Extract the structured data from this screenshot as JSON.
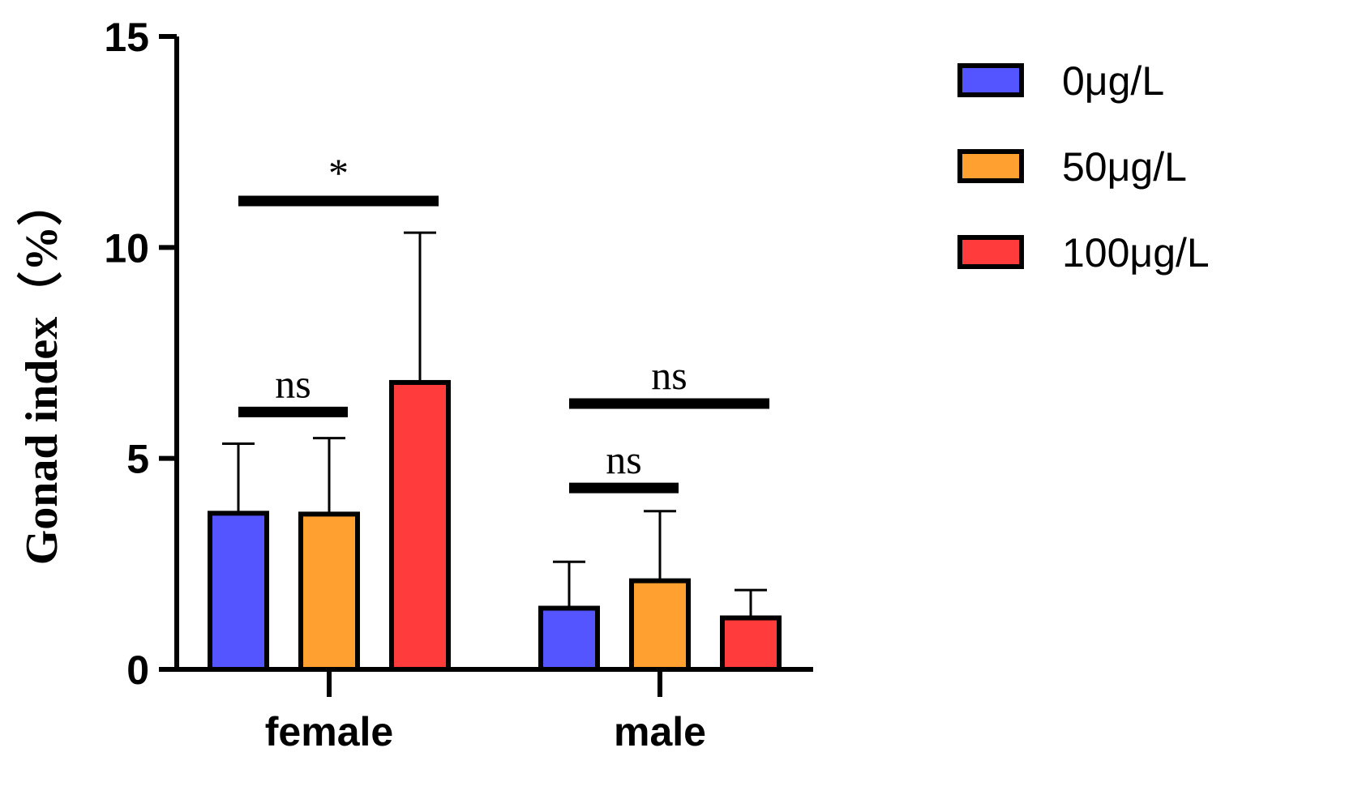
{
  "chart_data": {
    "type": "bar",
    "title": "",
    "xlabel": "",
    "ylabel": "Gonad index（%）",
    "ylim": [
      0,
      15
    ],
    "yticks": [
      "0",
      "5",
      "10",
      "15"
    ],
    "grid": false,
    "legend_position": "top-right",
    "categories": [
      "female",
      "male"
    ],
    "series": [
      {
        "name": "0μg/L",
        "color": "#5555ff",
        "values": [
          3.7,
          1.45
        ],
        "errors": [
          1.65,
          1.1
        ]
      },
      {
        "name": "50μg/L",
        "color": "#ffa030",
        "values": [
          3.68,
          2.1
        ],
        "errors": [
          1.8,
          1.65
        ]
      },
      {
        "name": "100μg/L",
        "color": "#ff3b3b",
        "values": [
          6.8,
          1.22
        ],
        "errors": [
          3.55,
          0.66
        ]
      }
    ],
    "annotations": [
      {
        "label": "*",
        "category": "female",
        "from_series": 0,
        "to_series": 2,
        "y": 11.1
      },
      {
        "label": "ns",
        "category": "female",
        "from_series": 0,
        "to_series": 1,
        "y": 6.1
      },
      {
        "label": "ns",
        "category": "male",
        "from_series": 0,
        "to_series": 2,
        "y": 6.3
      },
      {
        "label": "ns",
        "category": "male",
        "from_series": 0,
        "to_series": 1,
        "y": 4.3
      }
    ]
  }
}
